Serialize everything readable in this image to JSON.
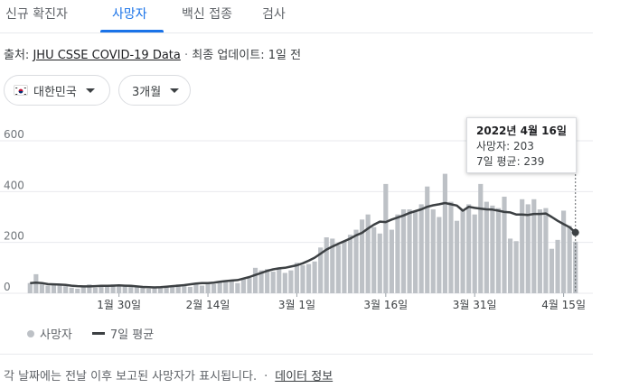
{
  "tabs": [
    {
      "label": "신규 확진자",
      "active": false
    },
    {
      "label": "사망자",
      "active": true
    },
    {
      "label": "백신 접종",
      "active": false
    },
    {
      "label": "검사",
      "active": false
    }
  ],
  "source": {
    "prefix": "출처:",
    "link": "JHU CSSE COVID-19 Data",
    "sep": "·",
    "update": "최종 업데이트: 1일 전"
  },
  "filters": {
    "country": "대한민국",
    "range": "3개월"
  },
  "tooltip": {
    "date": "2022년 4월 16일",
    "deaths": "사망자: 203",
    "avg": "7일 평균: 239"
  },
  "legend": {
    "deaths": "사망자",
    "avg": "7일 평균"
  },
  "footer": {
    "text": "각 날짜에는 전날 이후 보고된 사망자가 표시됩니다.",
    "sep": "·",
    "link": "데이터 정보"
  },
  "colors": {
    "bar": "#bdc1c6",
    "line": "#3c4043",
    "accent": "#1a73e8",
    "grid": "#e8eaed"
  },
  "chart_data": {
    "type": "bar",
    "ylim": [
      0,
      600
    ],
    "yticks": [
      0,
      200,
      400,
      600
    ],
    "xtick_labels": [
      {
        "index": 15,
        "label": "1월 30일"
      },
      {
        "index": 30,
        "label": "2월 14일"
      },
      {
        "index": 45,
        "label": "3월 1일"
      },
      {
        "index": 60,
        "label": "3월 16일"
      },
      {
        "index": 75,
        "label": "3월 31일"
      },
      {
        "index": 90,
        "label": "4월 15일"
      }
    ],
    "series": [
      {
        "name": "사망자",
        "type": "bar",
        "values": [
          40,
          75,
          35,
          30,
          38,
          32,
          28,
          22,
          18,
          30,
          35,
          22,
          28,
          30,
          35,
          33,
          28,
          25,
          30,
          22,
          18,
          22,
          25,
          27,
          30,
          35,
          30,
          25,
          38,
          30,
          40,
          36,
          45,
          48,
          50,
          40,
          55,
          60,
          100,
          90,
          95,
          85,
          100,
          80,
          90,
          120,
          110,
          115,
          125,
          180,
          220,
          215,
          190,
          205,
          230,
          250,
          290,
          310,
          260,
          235,
          430,
          250,
          310,
          330,
          330,
          320,
          350,
          420,
          330,
          300,
          470,
          360,
          285,
          330,
          350,
          310,
          430,
          360,
          345,
          335,
          380,
          215,
          205,
          370,
          350,
          370,
          330,
          335,
          175,
          210,
          325,
          265,
          203
        ]
      },
      {
        "name": "7일 평균",
        "type": "line",
        "values": [
          40,
          42,
          40,
          36,
          35,
          34,
          33,
          30,
          28,
          27,
          27,
          28,
          29,
          29,
          30,
          31,
          30,
          29,
          27,
          25,
          24,
          23,
          24,
          26,
          28,
          30,
          32,
          35,
          38,
          40,
          40,
          42,
          45,
          48,
          50,
          52,
          58,
          64,
          72,
          80,
          88,
          94,
          98,
          100,
          105,
          110,
          118,
          128,
          140,
          156,
          172,
          184,
          195,
          205,
          215,
          228,
          238,
          255,
          270,
          282,
          280,
          290,
          298,
          306,
          316,
          323,
          330,
          340,
          346,
          350,
          355,
          350,
          345,
          325,
          340,
          336,
          333,
          330,
          329,
          325,
          320,
          318,
          310,
          310,
          308,
          312,
          312,
          314,
          300,
          285,
          272,
          260,
          239
        ]
      }
    ],
    "highlight_index": 92
  }
}
